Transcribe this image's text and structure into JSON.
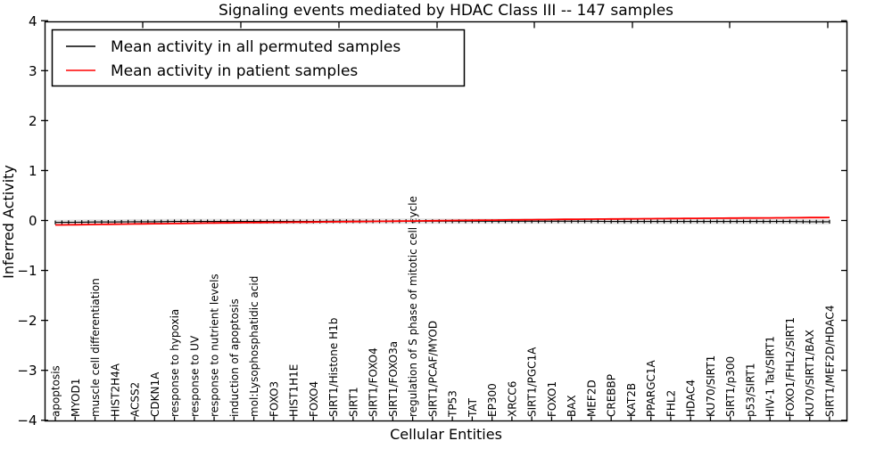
{
  "chart_data": {
    "type": "line",
    "title": "Signaling events mediated by HDAC Class III -- 147 samples",
    "xlabel": "Cellular Entities",
    "ylabel": "Inferred Activity",
    "ylim": [
      -4,
      4
    ],
    "yticks": [
      {
        "value": 4,
        "label": "4"
      },
      {
        "value": 3,
        "label": "3"
      },
      {
        "value": 2,
        "label": "2"
      },
      {
        "value": 1,
        "label": "1"
      },
      {
        "value": 0,
        "label": "0"
      },
      {
        "value": -1,
        "label": "−1"
      },
      {
        "value": -2,
        "label": "−2"
      },
      {
        "value": -3,
        "label": "−3"
      },
      {
        "value": -4,
        "label": "−4"
      }
    ],
    "grid": false,
    "legend_position": "upper left",
    "categories": [
      "apoptosis",
      "MYOD1",
      "muscle cell differentiation",
      "HIST2H4A",
      "ACSS2",
      "CDKN1A",
      "response to hypoxia",
      "response to UV",
      "response to nutrient levels",
      "induction of apoptosis",
      "mol:Lysophosphatidic acid",
      "FOXO3",
      "HIST1H1E",
      "FOXO4",
      "SIRT1/Histone H1b",
      "SIRT1",
      "SIRT1/FOXO4",
      "SIRT1/FOXO3a",
      "regulation of S phase of mitotic cell cycle",
      "SIRT1/PCAF/MYOD",
      "TP53",
      "TAT",
      "EP300",
      "XRCC6",
      "SIRT1/PGC1A",
      "FOXO1",
      "BAX",
      "MEF2D",
      "CREBBP",
      "KAT2B",
      "PPARGC1A",
      "FHL2",
      "HDAC4",
      "KU70/SIRT1",
      "SIRT1/p300",
      "p53/SIRT1",
      "HIV-1 Tat/SIRT1",
      "FOXO1/FHL2/SIRT1",
      "KU70/SIRT1/BAX",
      "SIRT1/MEF2D/HDAC4"
    ],
    "series": [
      {
        "name": "Mean activity in all permuted samples",
        "color": "#000000",
        "marker": "vertical-dash",
        "values": [
          -0.04,
          -0.035,
          -0.03,
          -0.03,
          -0.025,
          -0.025,
          -0.02,
          -0.02,
          -0.02,
          -0.02,
          -0.02,
          -0.02,
          -0.02,
          -0.02,
          -0.015,
          -0.015,
          -0.015,
          -0.015,
          -0.015,
          -0.015,
          -0.015,
          -0.015,
          -0.015,
          -0.015,
          -0.015,
          -0.015,
          -0.015,
          -0.015,
          -0.02,
          -0.02,
          -0.02,
          -0.02,
          -0.02,
          -0.02,
          -0.02,
          -0.02,
          -0.02,
          -0.02,
          -0.025,
          -0.025
        ]
      },
      {
        "name": "Mean activity in patient samples",
        "color": "#ff0000",
        "marker": "none",
        "values": [
          -0.09,
          -0.085,
          -0.08,
          -0.075,
          -0.07,
          -0.065,
          -0.06,
          -0.055,
          -0.05,
          -0.046,
          -0.042,
          -0.038,
          -0.034,
          -0.03,
          -0.026,
          -0.022,
          -0.018,
          -0.014,
          -0.01,
          -0.005,
          0.0,
          0.004,
          0.008,
          0.012,
          0.016,
          0.02,
          0.024,
          0.027,
          0.03,
          0.033,
          0.036,
          0.039,
          0.042,
          0.045,
          0.048,
          0.05,
          0.052,
          0.055,
          0.058,
          0.06
        ]
      }
    ],
    "band_color": "#c9c9c9"
  }
}
